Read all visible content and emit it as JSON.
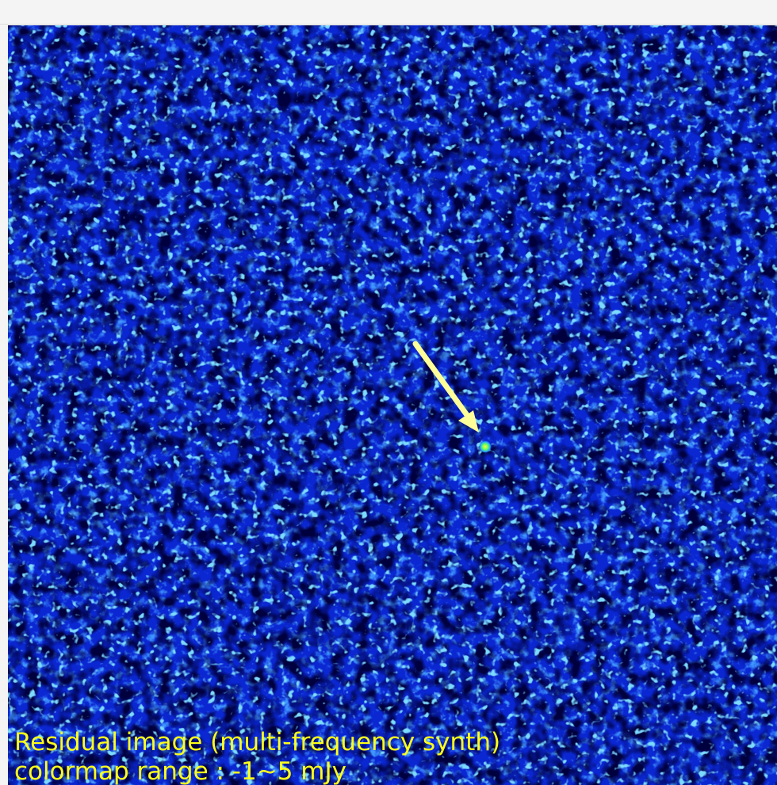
{
  "caption": {
    "line1": "Residual image (multi-frequency synth)",
    "line2": "colormap range : -1~5 mJy"
  }
}
